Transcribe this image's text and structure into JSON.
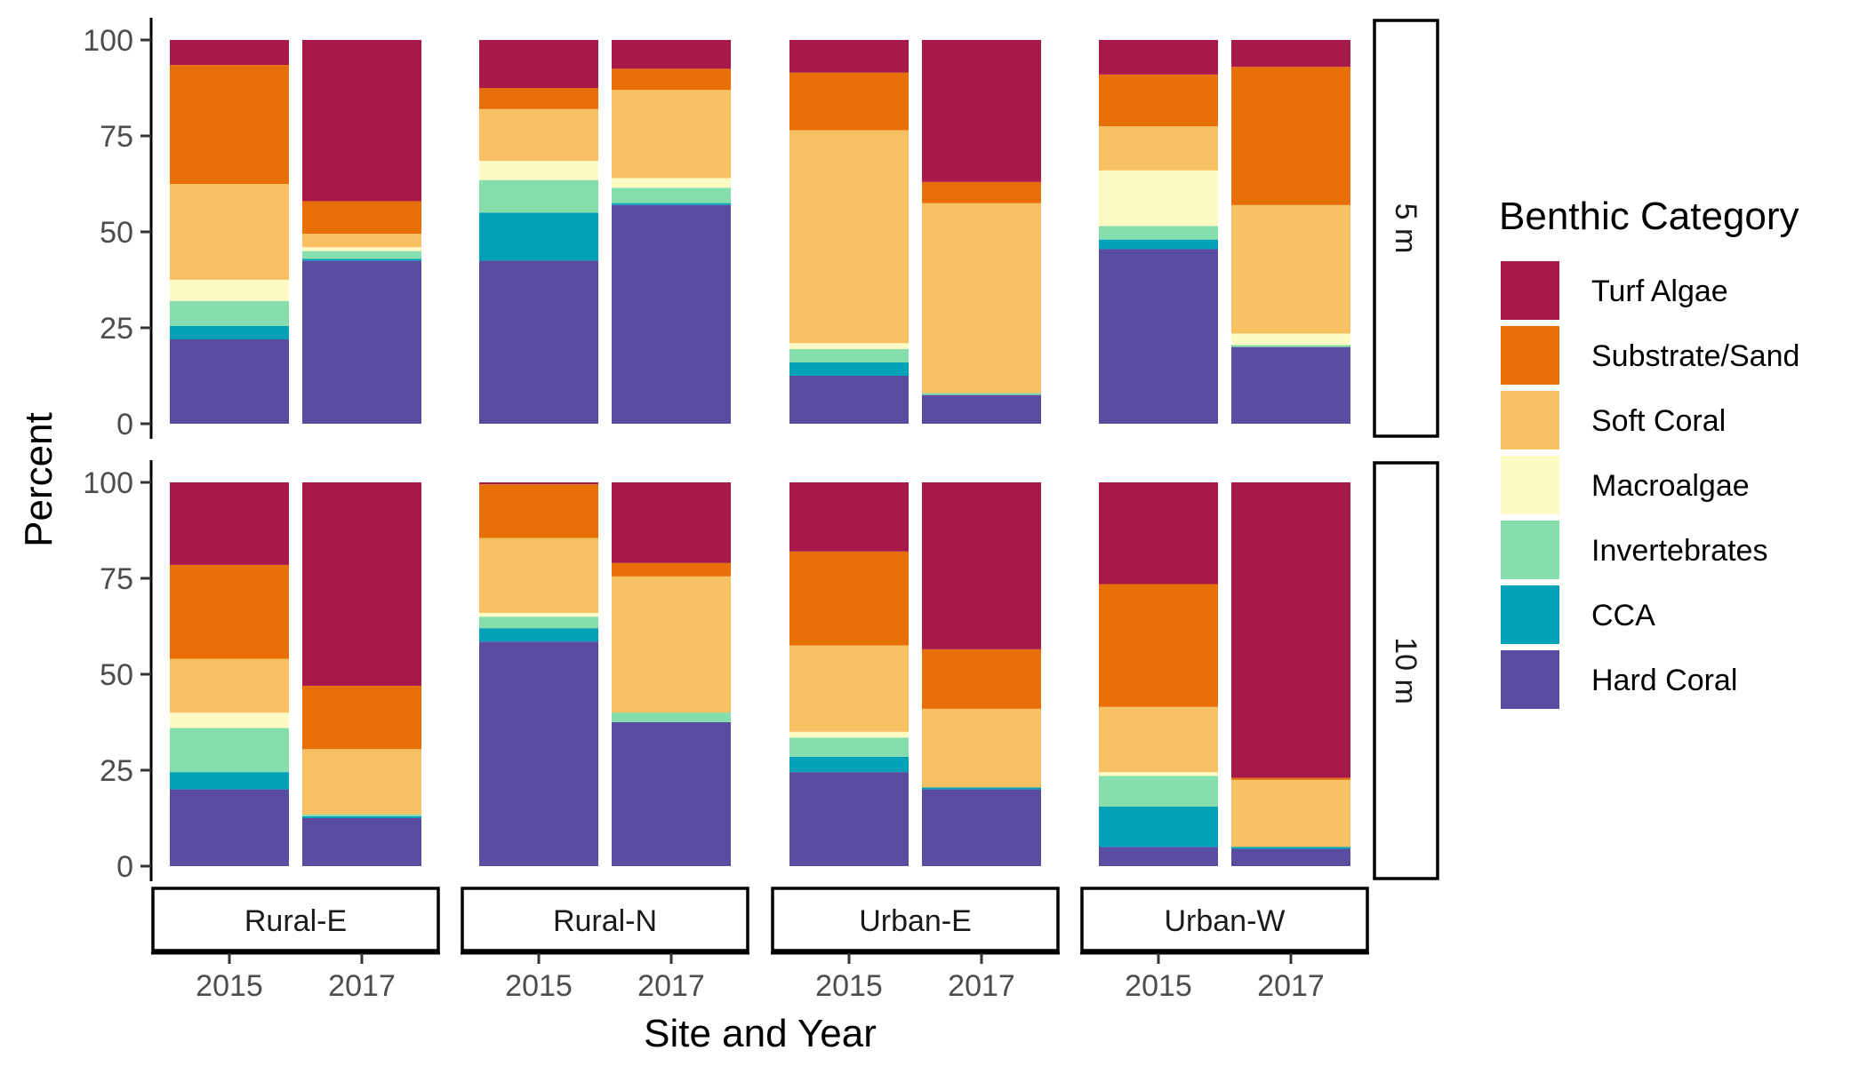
{
  "chart_data": {
    "type": "bar",
    "stacked": true,
    "xlabel": "Site and Year",
    "ylabel": "Percent",
    "ylim": [
      0,
      100
    ],
    "yticks": [
      0,
      25,
      50,
      75,
      100
    ],
    "legend": {
      "title": "Benthic Category",
      "position": "right",
      "entries": [
        "Turf Algae",
        "Substrate/Sand",
        "Soft Coral",
        "Macroalgae",
        "Invertebrates",
        "CCA",
        "Hard Coral"
      ]
    },
    "colors": {
      "Turf Algae": "#A6194A",
      "Substrate/Sand": "#E86F05",
      "Soft Coral": "#F7C063",
      "Macroalgae": "#FDFAC4",
      "Invertebrates": "#86DEAD",
      "CCA": "#01A2B8",
      "Hard Coral": "#5A4CA1"
    },
    "stack_order": [
      "Hard Coral",
      "CCA",
      "Invertebrates",
      "Macroalgae",
      "Soft Coral",
      "Substrate/Sand",
      "Turf Algae"
    ],
    "sites": [
      "Rural-E",
      "Rural-N",
      "Urban-E",
      "Urban-W"
    ],
    "years": [
      "2015",
      "2017"
    ],
    "depths": [
      "5 m",
      "10 m"
    ],
    "panels": [
      {
        "depth": "5 m",
        "bars": [
          {
            "site": "Rural-E",
            "year": "2015",
            "values": {
              "Hard Coral": 22,
              "CCA": 3.5,
              "Invertebrates": 6.5,
              "Macroalgae": 5.5,
              "Soft Coral": 25,
              "Substrate/Sand": 31,
              "Turf Algae": 6.5
            }
          },
          {
            "site": "Rural-E",
            "year": "2017",
            "values": {
              "Hard Coral": 42.5,
              "CCA": 0.5,
              "Invertebrates": 2,
              "Macroalgae": 1,
              "Soft Coral": 3.5,
              "Substrate/Sand": 8.5,
              "Turf Algae": 42
            }
          },
          {
            "site": "Rural-N",
            "year": "2015",
            "values": {
              "Hard Coral": 42.5,
              "CCA": 12.5,
              "Invertebrates": 8.5,
              "Macroalgae": 5,
              "Soft Coral": 13.5,
              "Substrate/Sand": 5.5,
              "Turf Algae": 12.5
            }
          },
          {
            "site": "Rural-N",
            "year": "2017",
            "values": {
              "Hard Coral": 57,
              "CCA": 0.5,
              "Invertebrates": 4,
              "Macroalgae": 2.5,
              "Soft Coral": 23,
              "Substrate/Sand": 5.5,
              "Turf Algae": 7.5
            }
          },
          {
            "site": "Urban-E",
            "year": "2015",
            "values": {
              "Hard Coral": 12.5,
              "CCA": 3.5,
              "Invertebrates": 3.5,
              "Macroalgae": 1.5,
              "Soft Coral": 55.5,
              "Substrate/Sand": 15,
              "Turf Algae": 8.5
            }
          },
          {
            "site": "Urban-E",
            "year": "2017",
            "values": {
              "Hard Coral": 7.5,
              "CCA": 0,
              "Invertebrates": 0.5,
              "Macroalgae": 0,
              "Soft Coral": 49.5,
              "Substrate/Sand": 5.5,
              "Turf Algae": 37
            }
          },
          {
            "site": "Urban-W",
            "year": "2015",
            "values": {
              "Hard Coral": 45.5,
              "CCA": 2.5,
              "Invertebrates": 3.5,
              "Macroalgae": 14.5,
              "Soft Coral": 11.5,
              "Substrate/Sand": 13.5,
              "Turf Algae": 9
            }
          },
          {
            "site": "Urban-W",
            "year": "2017",
            "values": {
              "Hard Coral": 20,
              "CCA": 0,
              "Invertebrates": 0.5,
              "Macroalgae": 3,
              "Soft Coral": 33.5,
              "Substrate/Sand": 36,
              "Turf Algae": 7
            }
          }
        ]
      },
      {
        "depth": "10 m",
        "bars": [
          {
            "site": "Rural-E",
            "year": "2015",
            "values": {
              "Hard Coral": 20,
              "CCA": 4.5,
              "Invertebrates": 11.5,
              "Macroalgae": 4,
              "Soft Coral": 14,
              "Substrate/Sand": 24.5,
              "Turf Algae": 21.5
            }
          },
          {
            "site": "Rural-E",
            "year": "2017",
            "values": {
              "Hard Coral": 12.5,
              "CCA": 0.5,
              "Invertebrates": 0.5,
              "Macroalgae": 0,
              "Soft Coral": 17,
              "Substrate/Sand": 16.5,
              "Turf Algae": 53
            }
          },
          {
            "site": "Rural-N",
            "year": "2015",
            "values": {
              "Hard Coral": 58.5,
              "CCA": 3.5,
              "Invertebrates": 3,
              "Macroalgae": 1,
              "Soft Coral": 19.5,
              "Substrate/Sand": 14,
              "Turf Algae": 0.5
            }
          },
          {
            "site": "Rural-N",
            "year": "2017",
            "values": {
              "Hard Coral": 37.5,
              "CCA": 0,
              "Invertebrates": 2.5,
              "Macroalgae": 0,
              "Soft Coral": 35.5,
              "Substrate/Sand": 3.5,
              "Turf Algae": 21
            }
          },
          {
            "site": "Urban-E",
            "year": "2015",
            "values": {
              "Hard Coral": 24.5,
              "CCA": 4,
              "Invertebrates": 5,
              "Macroalgae": 1.5,
              "Soft Coral": 22.5,
              "Substrate/Sand": 24.5,
              "Turf Algae": 18
            }
          },
          {
            "site": "Urban-E",
            "year": "2017",
            "values": {
              "Hard Coral": 20,
              "CCA": 0.5,
              "Invertebrates": 0,
              "Macroalgae": 0,
              "Soft Coral": 20.5,
              "Substrate/Sand": 15.5,
              "Turf Algae": 43.5
            }
          },
          {
            "site": "Urban-W",
            "year": "2015",
            "values": {
              "Hard Coral": 5,
              "CCA": 10.5,
              "Invertebrates": 8,
              "Macroalgae": 1,
              "Soft Coral": 17,
              "Substrate/Sand": 32,
              "Turf Algae": 26.5
            }
          },
          {
            "site": "Urban-W",
            "year": "2017",
            "values": {
              "Hard Coral": 4.5,
              "CCA": 0.5,
              "Invertebrates": 0,
              "Macroalgae": 0,
              "Soft Coral": 17.5,
              "Substrate/Sand": 0.5,
              "Turf Algae": 77
            }
          }
        ]
      }
    ]
  }
}
